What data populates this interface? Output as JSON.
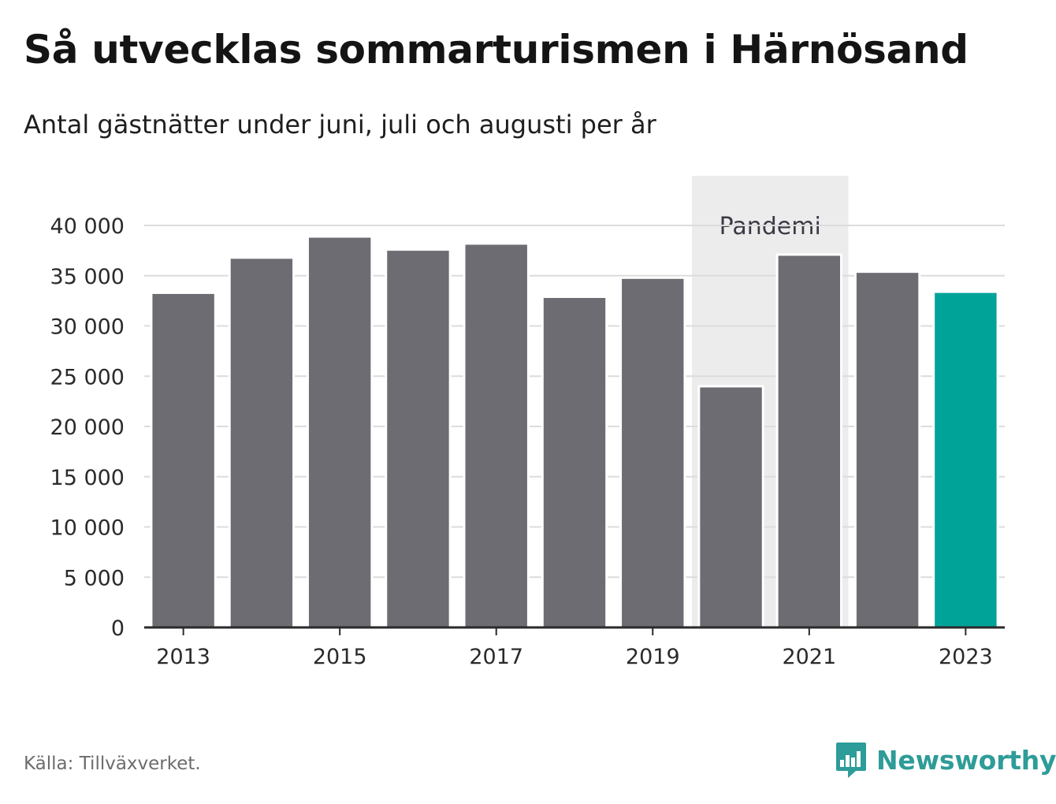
{
  "title": "Så utvecklas sommarturismen i Härnösand",
  "subtitle": "Antal gästnätter under juni, juli och augusti per år",
  "source": "Källa: Tillväxverket.",
  "brand": {
    "name": "Newsworthy",
    "icon": "newsworthy-logo-icon"
  },
  "colors": {
    "bar": "#6d6c73",
    "highlight": "#00a398",
    "shade": "#ececec",
    "grid": "#dcdcdc",
    "axis": "#2a2a2a",
    "brand": "#2e9c98"
  },
  "chart_data": {
    "type": "bar",
    "categories": [
      "2013",
      "2014",
      "2015",
      "2016",
      "2017",
      "2018",
      "2019",
      "2020",
      "2021",
      "2022",
      "2023"
    ],
    "values": [
      33300,
      36800,
      38900,
      37600,
      38200,
      32900,
      34800,
      24000,
      37100,
      35400,
      33400
    ],
    "highlight_category": "2023",
    "ylim": [
      0,
      40000
    ],
    "yticks": [
      0,
      5000,
      10000,
      15000,
      20000,
      25000,
      30000,
      35000,
      40000
    ],
    "ytick_labels": [
      "0",
      "5 000",
      "10 000",
      "15 000",
      "20 000",
      "25 000",
      "30 000",
      "35 000",
      "40 000"
    ],
    "xtick_labels": [
      "2013",
      "2015",
      "2017",
      "2019",
      "2021",
      "2023"
    ],
    "shaded_region": {
      "label": "Pandemi",
      "from": "2020",
      "to": "2021"
    },
    "xlabel": "",
    "ylabel": "",
    "grid": true
  }
}
